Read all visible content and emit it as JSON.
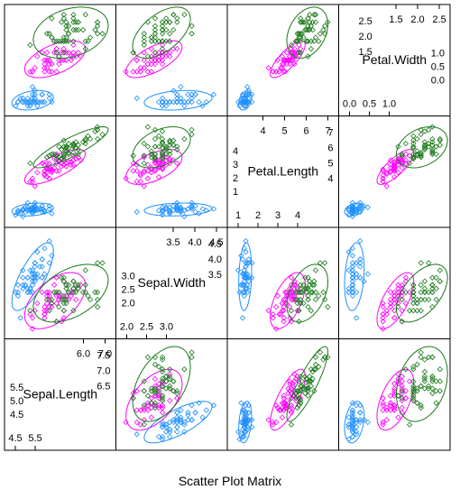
{
  "chart_data": {
    "type": "scatter",
    "title": "Scatter Plot Matrix",
    "variables": [
      "Sepal.Length",
      "Sepal.Width",
      "Petal.Length",
      "Petal.Width"
    ],
    "ranges": {
      "Sepal.Length": [
        4.1,
        8.2
      ],
      "Sepal.Width": [
        1.9,
        4.6
      ],
      "Petal.Length": [
        0.7,
        7.2
      ],
      "Petal.Width": [
        0.0,
        2.6
      ]
    },
    "diagonal_ticks": [
      {
        "variable": "Petal.Width",
        "low": [
          "0.0",
          "0.5",
          "1.0"
        ],
        "high": [
          "1.5",
          "2.0",
          "2.5"
        ],
        "left": [
          "0.0",
          "0.5",
          "1.0"
        ],
        "right": [
          "1.5",
          "2.0",
          "2.5"
        ]
      },
      {
        "variable": "Petal.Length",
        "low": [
          "1",
          "2",
          "3",
          "4"
        ],
        "high": [
          "4",
          "5",
          "6",
          "7"
        ],
        "left": [
          "1",
          "2",
          "3",
          "4"
        ],
        "right": [
          "4",
          "5",
          "6",
          "7"
        ]
      },
      {
        "variable": "Sepal.Width",
        "low": [
          "2.0",
          "2.5",
          "3.0"
        ],
        "high": [
          "3.5",
          "4.0",
          "4.5"
        ],
        "left": [
          "2.0",
          "2.5",
          "3.0"
        ],
        "right": [
          "3.5",
          "4.0",
          "4.5"
        ]
      },
      {
        "variable": "Sepal.Length",
        "low": [
          "4.5",
          "5.5"
        ],
        "high": [
          "6.0",
          "7.0"
        ],
        "left": [
          "4.5",
          "5.0",
          "5.5"
        ],
        "right": [
          "6.5",
          "7.0",
          "7.5"
        ]
      }
    ],
    "series": [
      {
        "color": "#1e90ff",
        "points": [
          [
            5.1,
            3.5,
            1.4,
            0.2
          ],
          [
            4.9,
            3.0,
            1.4,
            0.2
          ],
          [
            4.7,
            3.2,
            1.3,
            0.2
          ],
          [
            4.6,
            3.1,
            1.5,
            0.2
          ],
          [
            5.0,
            3.6,
            1.4,
            0.2
          ],
          [
            5.4,
            3.9,
            1.7,
            0.4
          ],
          [
            4.6,
            3.4,
            1.4,
            0.3
          ],
          [
            5.0,
            3.4,
            1.5,
            0.2
          ],
          [
            4.4,
            2.9,
            1.4,
            0.2
          ],
          [
            4.9,
            3.1,
            1.5,
            0.1
          ],
          [
            5.4,
            3.7,
            1.5,
            0.2
          ],
          [
            4.8,
            3.4,
            1.6,
            0.2
          ],
          [
            4.8,
            3.0,
            1.4,
            0.1
          ],
          [
            4.3,
            3.0,
            1.1,
            0.1
          ],
          [
            5.8,
            4.0,
            1.2,
            0.2
          ],
          [
            5.7,
            4.4,
            1.5,
            0.4
          ],
          [
            5.4,
            3.9,
            1.3,
            0.4
          ],
          [
            5.1,
            3.5,
            1.4,
            0.3
          ],
          [
            5.7,
            3.8,
            1.7,
            0.3
          ],
          [
            5.1,
            3.8,
            1.5,
            0.3
          ],
          [
            5.4,
            3.4,
            1.7,
            0.2
          ],
          [
            5.1,
            3.7,
            1.5,
            0.4
          ],
          [
            4.6,
            3.6,
            1.0,
            0.2
          ],
          [
            5.1,
            3.3,
            1.7,
            0.5
          ],
          [
            4.8,
            3.4,
            1.9,
            0.2
          ],
          [
            5.0,
            3.0,
            1.6,
            0.2
          ],
          [
            5.0,
            3.4,
            1.6,
            0.4
          ],
          [
            5.2,
            3.5,
            1.5,
            0.2
          ],
          [
            5.2,
            3.4,
            1.4,
            0.2
          ],
          [
            4.7,
            3.2,
            1.6,
            0.2
          ],
          [
            4.8,
            3.1,
            1.6,
            0.2
          ],
          [
            5.4,
            3.4,
            1.5,
            0.4
          ],
          [
            5.2,
            4.1,
            1.5,
            0.1
          ],
          [
            5.5,
            4.2,
            1.4,
            0.2
          ],
          [
            4.9,
            3.1,
            1.5,
            0.2
          ],
          [
            5.0,
            3.2,
            1.2,
            0.2
          ],
          [
            5.5,
            3.5,
            1.3,
            0.2
          ],
          [
            4.9,
            3.6,
            1.4,
            0.1
          ],
          [
            4.4,
            3.0,
            1.3,
            0.2
          ],
          [
            5.1,
            3.4,
            1.5,
            0.2
          ],
          [
            5.0,
            3.5,
            1.3,
            0.3
          ],
          [
            4.5,
            2.3,
            1.3,
            0.3
          ],
          [
            4.4,
            3.2,
            1.3,
            0.2
          ],
          [
            5.0,
            3.5,
            1.6,
            0.6
          ],
          [
            5.1,
            3.8,
            1.9,
            0.4
          ],
          [
            4.8,
            3.0,
            1.4,
            0.3
          ],
          [
            5.1,
            3.8,
            1.6,
            0.2
          ],
          [
            4.6,
            3.2,
            1.4,
            0.2
          ],
          [
            5.3,
            3.7,
            1.5,
            0.2
          ],
          [
            5.0,
            3.3,
            1.4,
            0.2
          ]
        ]
      },
      {
        "color": "#ff00ff",
        "points": [
          [
            7.0,
            3.2,
            4.7,
            1.4
          ],
          [
            6.4,
            3.2,
            4.5,
            1.5
          ],
          [
            6.9,
            3.1,
            4.9,
            1.5
          ],
          [
            5.5,
            2.3,
            4.0,
            1.3
          ],
          [
            6.5,
            2.8,
            4.6,
            1.5
          ],
          [
            5.7,
            2.8,
            4.5,
            1.3
          ],
          [
            6.3,
            3.3,
            4.7,
            1.6
          ],
          [
            4.9,
            2.4,
            3.3,
            1.0
          ],
          [
            6.6,
            2.9,
            4.6,
            1.3
          ],
          [
            5.2,
            2.7,
            3.9,
            1.4
          ],
          [
            5.0,
            2.0,
            3.5,
            1.0
          ],
          [
            5.9,
            3.0,
            4.2,
            1.5
          ],
          [
            6.0,
            2.2,
            4.0,
            1.0
          ],
          [
            6.1,
            2.9,
            4.7,
            1.4
          ],
          [
            5.6,
            2.9,
            3.6,
            1.3
          ],
          [
            6.7,
            3.1,
            4.4,
            1.4
          ],
          [
            5.6,
            3.0,
            4.5,
            1.5
          ],
          [
            5.8,
            2.7,
            4.1,
            1.0
          ],
          [
            6.2,
            2.2,
            4.5,
            1.5
          ],
          [
            5.6,
            2.5,
            3.9,
            1.1
          ],
          [
            5.9,
            3.2,
            4.8,
            1.8
          ],
          [
            6.1,
            2.8,
            4.0,
            1.3
          ],
          [
            6.3,
            2.5,
            4.9,
            1.5
          ],
          [
            6.1,
            2.8,
            4.7,
            1.2
          ],
          [
            6.4,
            2.9,
            4.3,
            1.3
          ],
          [
            6.6,
            3.0,
            4.4,
            1.4
          ],
          [
            6.8,
            2.8,
            4.8,
            1.4
          ],
          [
            6.7,
            3.0,
            5.0,
            1.7
          ],
          [
            6.0,
            2.9,
            4.5,
            1.5
          ],
          [
            5.7,
            2.6,
            3.5,
            1.0
          ],
          [
            5.5,
            2.4,
            3.8,
            1.1
          ],
          [
            5.5,
            2.4,
            3.7,
            1.0
          ],
          [
            5.8,
            2.7,
            3.9,
            1.2
          ],
          [
            6.0,
            2.7,
            5.1,
            1.6
          ],
          [
            5.4,
            3.0,
            4.5,
            1.5
          ],
          [
            6.0,
            3.4,
            4.5,
            1.6
          ],
          [
            6.7,
            3.1,
            4.7,
            1.5
          ],
          [
            6.3,
            2.3,
            4.4,
            1.3
          ],
          [
            5.6,
            3.0,
            4.1,
            1.3
          ],
          [
            5.5,
            2.5,
            4.0,
            1.3
          ],
          [
            5.5,
            2.6,
            4.4,
            1.2
          ],
          [
            6.1,
            3.0,
            4.6,
            1.4
          ],
          [
            5.8,
            2.6,
            4.0,
            1.2
          ],
          [
            5.0,
            2.3,
            3.3,
            1.0
          ],
          [
            5.6,
            2.7,
            4.2,
            1.3
          ],
          [
            5.7,
            3.0,
            4.2,
            1.2
          ],
          [
            5.7,
            2.9,
            4.2,
            1.3
          ],
          [
            6.2,
            2.9,
            4.3,
            1.3
          ],
          [
            5.1,
            2.5,
            3.0,
            1.1
          ],
          [
            5.7,
            2.8,
            4.1,
            1.3
          ]
        ]
      },
      {
        "color": "#1a7a1a",
        "points": [
          [
            6.3,
            3.3,
            6.0,
            2.5
          ],
          [
            5.8,
            2.7,
            5.1,
            1.9
          ],
          [
            7.1,
            3.0,
            5.9,
            2.1
          ],
          [
            6.3,
            2.9,
            5.6,
            1.8
          ],
          [
            6.5,
            3.0,
            5.8,
            2.2
          ],
          [
            7.6,
            3.0,
            6.6,
            2.1
          ],
          [
            4.9,
            2.5,
            4.5,
            1.7
          ],
          [
            7.3,
            2.9,
            6.3,
            1.8
          ],
          [
            6.7,
            2.5,
            5.8,
            1.8
          ],
          [
            7.2,
            3.6,
            6.1,
            2.5
          ],
          [
            6.5,
            3.2,
            5.1,
            2.0
          ],
          [
            6.4,
            2.7,
            5.3,
            1.9
          ],
          [
            6.8,
            3.0,
            5.5,
            2.1
          ],
          [
            5.7,
            2.5,
            5.0,
            2.0
          ],
          [
            5.8,
            2.8,
            5.1,
            2.4
          ],
          [
            6.4,
            3.2,
            5.3,
            2.3
          ],
          [
            6.5,
            3.0,
            5.5,
            1.8
          ],
          [
            7.7,
            3.8,
            6.7,
            2.2
          ],
          [
            7.7,
            2.6,
            6.9,
            2.3
          ],
          [
            6.0,
            2.2,
            5.0,
            1.5
          ],
          [
            6.9,
            3.2,
            5.7,
            2.3
          ],
          [
            5.6,
            2.8,
            4.9,
            2.0
          ],
          [
            7.7,
            2.8,
            6.7,
            2.0
          ],
          [
            6.3,
            2.7,
            4.9,
            1.8
          ],
          [
            6.7,
            3.3,
            5.7,
            2.1
          ],
          [
            7.2,
            3.2,
            6.0,
            1.8
          ],
          [
            6.2,
            2.8,
            4.8,
            1.8
          ],
          [
            6.1,
            3.0,
            4.9,
            1.8
          ],
          [
            6.4,
            2.8,
            5.6,
            2.1
          ],
          [
            7.2,
            3.0,
            5.8,
            1.6
          ],
          [
            7.4,
            2.8,
            6.1,
            1.9
          ],
          [
            7.9,
            3.8,
            6.4,
            2.0
          ],
          [
            6.4,
            2.8,
            5.6,
            2.2
          ],
          [
            6.3,
            2.8,
            5.1,
            1.5
          ],
          [
            6.1,
            2.6,
            5.6,
            1.4
          ],
          [
            7.7,
            3.0,
            6.1,
            2.3
          ],
          [
            6.3,
            3.4,
            5.6,
            2.4
          ],
          [
            6.4,
            3.1,
            5.5,
            1.8
          ],
          [
            6.0,
            3.0,
            4.8,
            1.8
          ],
          [
            6.9,
            3.1,
            5.4,
            2.1
          ],
          [
            6.7,
            3.1,
            5.6,
            2.4
          ],
          [
            6.9,
            3.1,
            5.1,
            2.3
          ],
          [
            5.8,
            2.7,
            5.1,
            1.9
          ],
          [
            6.8,
            3.2,
            5.9,
            2.3
          ],
          [
            6.7,
            3.3,
            5.7,
            2.5
          ],
          [
            6.7,
            3.0,
            5.2,
            2.3
          ],
          [
            6.3,
            2.5,
            5.0,
            1.9
          ],
          [
            6.5,
            3.0,
            5.2,
            2.0
          ],
          [
            6.2,
            3.4,
            5.4,
            2.3
          ],
          [
            5.9,
            3.0,
            5.1,
            1.8
          ]
        ]
      }
    ],
    "point_symbol": "open diamond",
    "ellipses": "confidence ellipse per group in every off-diagonal panel"
  }
}
